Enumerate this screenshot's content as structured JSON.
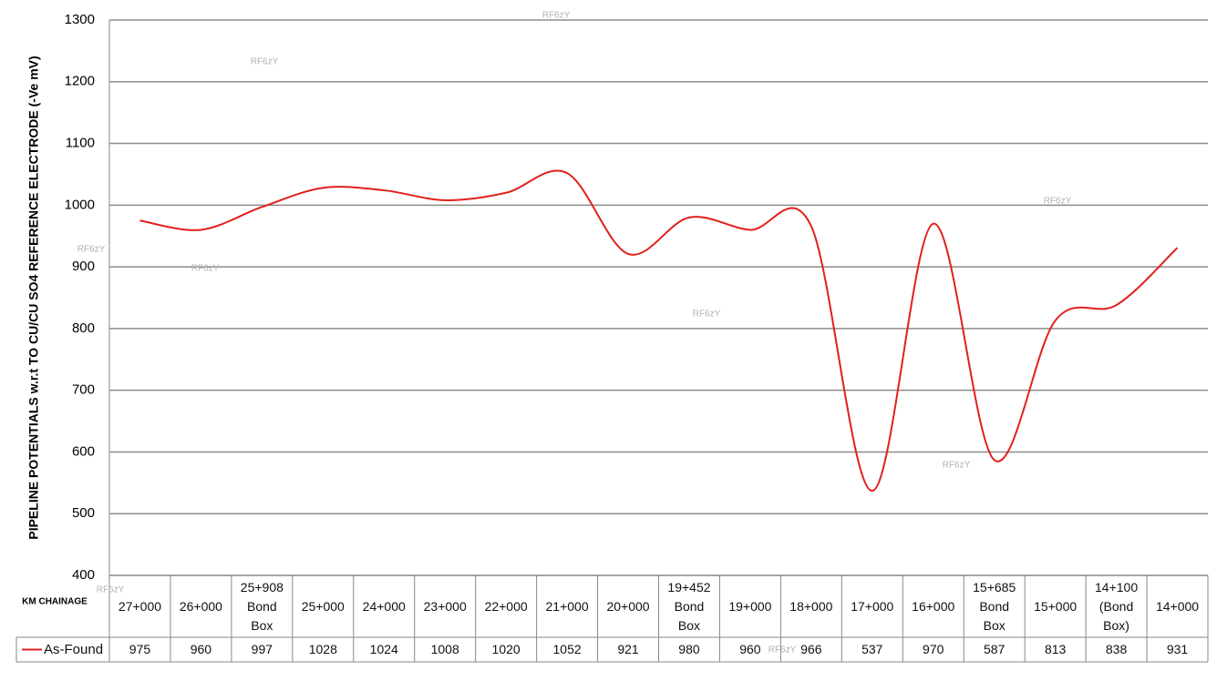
{
  "chart_data": {
    "type": "line",
    "y_label": "PIPELINE POTENTIALS w.r.t TO CU/CU SO4 REFERENCE ELECTRODE (-Ve mV)",
    "x_label": "KM CHAINAGE",
    "categories": [
      "27+000",
      "26+000",
      "25+908 Bond Box",
      "25+000",
      "24+000",
      "23+000",
      "22+000",
      "21+000",
      "20+000",
      "19+452 Bond Box",
      "19+000",
      "18+000",
      "17+000",
      "16+000",
      "15+685 Bond Box",
      "15+000",
      "14+100 (Bond Box)",
      "14+000"
    ],
    "series": [
      {
        "name": "As-Found",
        "color": "#e0201b",
        "values": [
          975,
          960,
          997,
          1028,
          1024,
          1008,
          1020,
          1052,
          921,
          980,
          960,
          966,
          537,
          970,
          587,
          813,
          838,
          931
        ]
      }
    ],
    "ylim": [
      400,
      1300
    ],
    "yticks": [
      400,
      500,
      600,
      700,
      800,
      900,
      1000,
      1100,
      1200,
      1300
    ],
    "grid": true,
    "watermarks": [
      "RF6zY",
      "RF6zY",
      "RF6zY",
      "RF6zY",
      "RF6zY",
      "RF6zY",
      "RF6zY",
      "RF6zY",
      "RF6zY"
    ]
  }
}
